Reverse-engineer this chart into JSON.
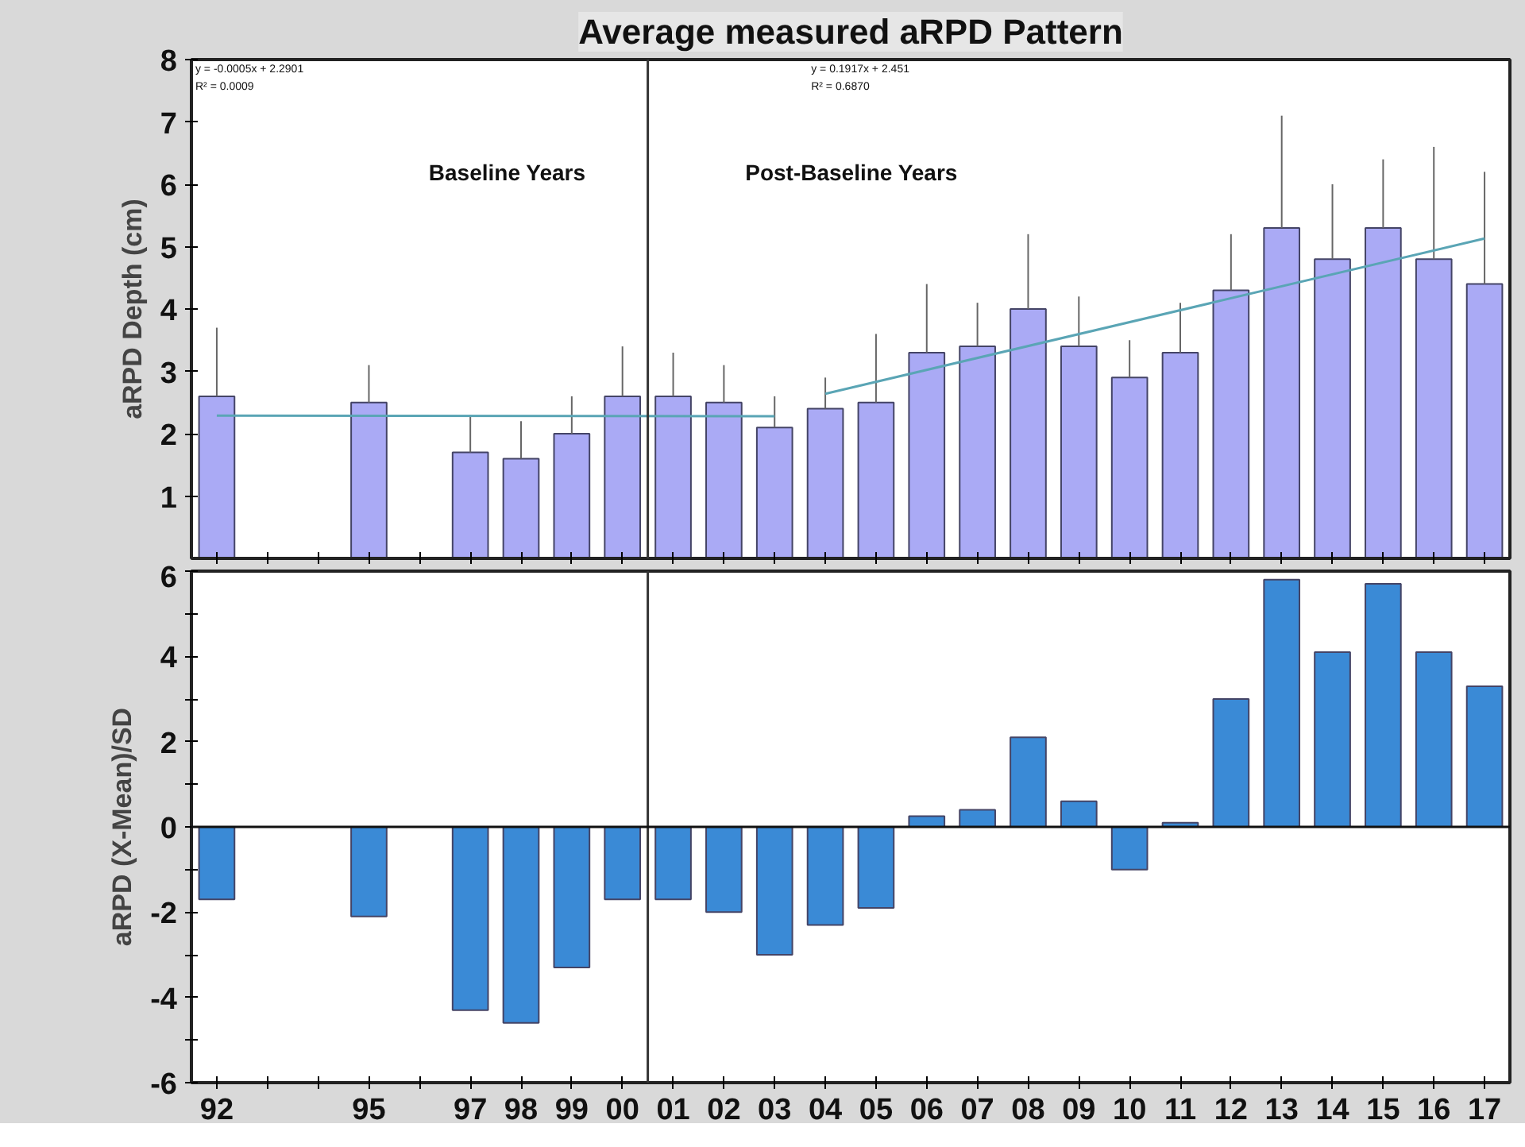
{
  "chart_data": [
    {
      "type": "bar",
      "title": "Average measured aRPD Pattern",
      "ylabel": "aRPD Depth (cm)",
      "x": [
        1992,
        1995,
        1997,
        1998,
        1999,
        2000,
        2001,
        2002,
        2003,
        2004,
        2005,
        2006,
        2007,
        2008,
        2009,
        2010,
        2011,
        2012,
        2013,
        2014,
        2015,
        2016,
        2017
      ],
      "series": [
        {
          "color": "#aaaaf5",
          "values": [
            2.6,
            2.5,
            1.7,
            1.6,
            2.0,
            2.6,
            2.6,
            2.5,
            2.1,
            2.4,
            2.5,
            3.3,
            3.4,
            4.0,
            3.4,
            2.9,
            3.3,
            4.3,
            5.3,
            4.8,
            5.3,
            4.8,
            4.4
          ],
          "errors": [
            [
              2.6,
              3.7
            ],
            [
              2.5,
              3.1
            ],
            [
              1.7,
              2.3
            ],
            [
              1.6,
              2.2
            ],
            [
              2.0,
              2.6
            ],
            [
              2.6,
              3.4
            ],
            [
              2.6,
              3.3
            ],
            [
              2.5,
              3.1
            ],
            [
              2.1,
              2.6
            ],
            [
              2.4,
              2.9
            ],
            [
              2.5,
              3.6
            ],
            [
              3.3,
              4.4
            ],
            [
              3.4,
              4.1
            ],
            [
              4.0,
              5.2
            ],
            [
              3.4,
              4.2
            ],
            [
              2.9,
              3.5
            ],
            [
              3.3,
              4.1
            ],
            [
              4.3,
              5.2
            ],
            [
              5.3,
              7.1
            ],
            [
              4.8,
              6.0
            ],
            [
              5.3,
              6.4
            ],
            [
              4.8,
              6.6
            ],
            [
              4.4,
              6.2
            ]
          ]
        },
        {
          "type": "line",
          "color": "#5aa5b5",
          "x": [
            1992,
            2003
          ],
          "values": [
            2.29,
            2.28
          ]
        },
        {
          "type": "line",
          "color": "#5aa5b5",
          "x": [
            2004,
            2017
          ],
          "values": [
            2.64,
            5.13
          ]
        }
      ],
      "xlim": [
        1991.5,
        2017.5
      ],
      "ylim": [
        0,
        8
      ],
      "yticks": [
        1,
        2,
        3,
        4,
        5,
        6,
        7,
        8
      ],
      "xticks": [
        1992,
        1993,
        1994,
        1995,
        1996,
        1997,
        1998,
        1999,
        2000,
        2001,
        2002,
        2003,
        2004,
        2005,
        2006,
        2007,
        2008,
        2009,
        2010,
        2011,
        2012,
        2013,
        2014,
        2015,
        2016,
        2017
      ],
      "tick_labels": "y",
      "ref_lines": [
        {
          "axis": "x",
          "value": 2000.5,
          "color": "#333333"
        }
      ],
      "annotations": [
        "y = -0.0005x + 2.2901",
        "R² = 0.0009",
        "y = 0.1917x + 2.451",
        "R² = 0.6870",
        "Baseline Years",
        "Post-Baseline Years"
      ],
      "grid": false
    },
    {
      "type": "bar",
      "ylabel": "aRPD (X-Mean)/SD",
      "x": [
        1992,
        1995,
        1997,
        1998,
        1999,
        2000,
        2001,
        2002,
        2003,
        2004,
        2005,
        2006,
        2007,
        2008,
        2009,
        2010,
        2011,
        2012,
        2013,
        2014,
        2015,
        2016,
        2017
      ],
      "series": [
        {
          "color": "#3a8ad6",
          "values": [
            -1.7,
            -2.1,
            -4.3,
            -4.6,
            -3.3,
            -1.7,
            -1.7,
            -2.0,
            -3.0,
            -2.3,
            -1.9,
            0.25,
            0.4,
            2.1,
            0.6,
            -1.0,
            0.1,
            3.0,
            5.8,
            4.1,
            5.7,
            4.1,
            3.3
          ]
        }
      ],
      "xlim": [
        1991.5,
        2017.5
      ],
      "ylim": [
        -6,
        6
      ],
      "yticks": [
        -6,
        {
          "value": -5,
          "label": null
        },
        -4,
        {
          "value": -3,
          "label": null
        },
        -2,
        {
          "value": -1,
          "label": null
        },
        0,
        {
          "value": 1,
          "label": null
        },
        2,
        {
          "value": 3,
          "label": null
        },
        4,
        {
          "value": 5,
          "label": null
        },
        6
      ],
      "xticks": [
        {
          "value": 1992,
          "label": "92"
        },
        {
          "value": 1993,
          "label": null
        },
        {
          "value": 1994,
          "label": null
        },
        {
          "value": 1995,
          "label": "95"
        },
        {
          "value": 1996,
          "label": null
        },
        {
          "value": 1997,
          "label": "97"
        },
        {
          "value": 1998,
          "label": "98"
        },
        {
          "value": 1999,
          "label": "99"
        },
        {
          "value": 2000,
          "label": "00"
        },
        {
          "value": 2001,
          "label": "01"
        },
        {
          "value": 2002,
          "label": "02"
        },
        {
          "value": 2003,
          "label": "03"
        },
        {
          "value": 2004,
          "label": "04"
        },
        {
          "value": 2005,
          "label": "05"
        },
        {
          "value": 2006,
          "label": "06"
        },
        {
          "value": 2007,
          "label": "07"
        },
        {
          "value": 2008,
          "label": "08"
        },
        {
          "value": 2009,
          "label": "09"
        },
        {
          "value": 2010,
          "label": "10"
        },
        {
          "value": 2011,
          "label": "11"
        },
        {
          "value": 2012,
          "label": "12"
        },
        {
          "value": 2013,
          "label": "13"
        },
        {
          "value": 2014,
          "label": "14"
        },
        {
          "value": 2015,
          "label": "15"
        },
        {
          "value": 2016,
          "label": "16"
        },
        {
          "value": 2017,
          "label": "17"
        }
      ],
      "ref_lines": [
        {
          "axis": "x",
          "value": 2000.5,
          "color": "#333333"
        },
        {
          "axis": "y",
          "value": 0,
          "color": "#111111"
        }
      ],
      "grid": false
    }
  ]
}
